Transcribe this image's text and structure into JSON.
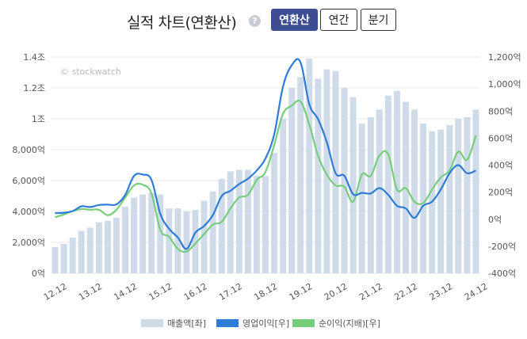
{
  "header": {
    "title": "실적 차트(연환산)",
    "help_icon": "?",
    "tabs": [
      {
        "label": "연환산",
        "active": true
      },
      {
        "label": "연간",
        "active": false
      },
      {
        "label": "분기",
        "active": false
      }
    ]
  },
  "watermark": "© stockwatch",
  "chart_data": {
    "type": "bar+line",
    "left_axis": {
      "min": 0,
      "max": 14000,
      "step": 2000,
      "tick_labels": [
        "0억",
        "2,000억",
        "4,000억",
        "6,000억",
        "8,000억",
        "1조",
        "1.2조",
        "1.4조"
      ]
    },
    "right_axis": {
      "min": -400,
      "max": 1200,
      "step": 200,
      "tick_labels": [
        "-400억",
        "-200억",
        "0억",
        "200억",
        "400억",
        "600억",
        "800억",
        "1,000억",
        "1,200억"
      ]
    },
    "x_labels": [
      "12.12",
      "13.12",
      "14.12",
      "15.12",
      "16.12",
      "17.12",
      "18.12",
      "19.12",
      "20.12",
      "21.12",
      "22.12",
      "23.12",
      "24.12"
    ],
    "quarters_per_label": 4,
    "grid": true,
    "legend_position": "bottom",
    "series": [
      {
        "name": "매출액[좌]",
        "kind": "bar",
        "axis": "left",
        "color": "#cfdbe9",
        "values": [
          1700,
          1900,
          2300,
          2750,
          2950,
          3300,
          3400,
          3600,
          4300,
          4900,
          5100,
          5200,
          5100,
          4200,
          4200,
          4000,
          4100,
          4700,
          5300,
          6100,
          6600,
          6700,
          6700,
          6300,
          6300,
          7800,
          10000,
          12000,
          12700,
          13900,
          12600,
          13200,
          13100,
          12000,
          11400,
          9700,
          10100,
          10600,
          11500,
          11800,
          11100,
          10600,
          9700,
          9200,
          9300,
          9600,
          10000,
          10100,
          10600
        ]
      },
      {
        "name": "영업이익[우]",
        "kind": "line",
        "axis": "right",
        "color": "#2e7cd6",
        "values": [
          45,
          48,
          60,
          95,
          90,
          105,
          108,
          110,
          180,
          320,
          330,
          290,
          40,
          -70,
          -135,
          -220,
          -100,
          -50,
          30,
          170,
          210,
          260,
          300,
          360,
          450,
          630,
          980,
          1140,
          1160,
          850,
          740,
          570,
          340,
          320,
          185,
          195,
          190,
          230,
          180,
          100,
          80,
          10,
          100,
          130,
          220,
          340,
          400,
          340,
          360
        ]
      },
      {
        "name": "순이익(지배)[우]",
        "kind": "line",
        "axis": "right",
        "color": "#76cd7b",
        "values": [
          15,
          35,
          60,
          75,
          70,
          70,
          30,
          70,
          160,
          250,
          255,
          190,
          -80,
          -130,
          -220,
          -240,
          -180,
          -110,
          -40,
          -20,
          80,
          160,
          180,
          290,
          350,
          550,
          780,
          840,
          870,
          700,
          470,
          330,
          250,
          240,
          130,
          330,
          320,
          470,
          480,
          220,
          230,
          130,
          120,
          220,
          310,
          360,
          500,
          440,
          620
        ]
      }
    ]
  }
}
